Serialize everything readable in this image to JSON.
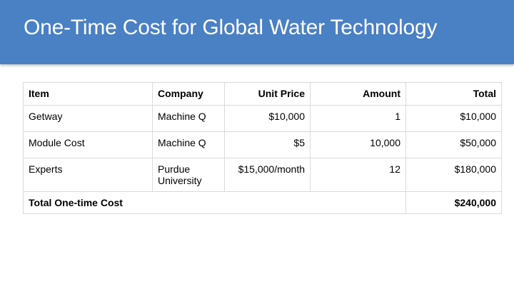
{
  "slide": {
    "title": "One-Time Cost for Global Water Technology"
  },
  "table": {
    "headers": [
      "Item",
      "Company",
      "Unit Price",
      "Amount",
      "Total"
    ],
    "rows": [
      [
        "Getway",
        "Machine Q",
        "$10,000",
        "1",
        "$10,000"
      ],
      [
        "Module Cost",
        "Machine Q",
        "$5",
        "10,000",
        "$50,000"
      ],
      [
        "Experts",
        "Purdue University",
        "$15,000/month",
        "12",
        "$180,000"
      ]
    ],
    "total": {
      "label": "Total One-time Cost",
      "value": "$240,000"
    }
  },
  "colors": {
    "title_bar": "#4a80c4",
    "title_text": "#ffffff",
    "grid_lines": "#dadada"
  }
}
